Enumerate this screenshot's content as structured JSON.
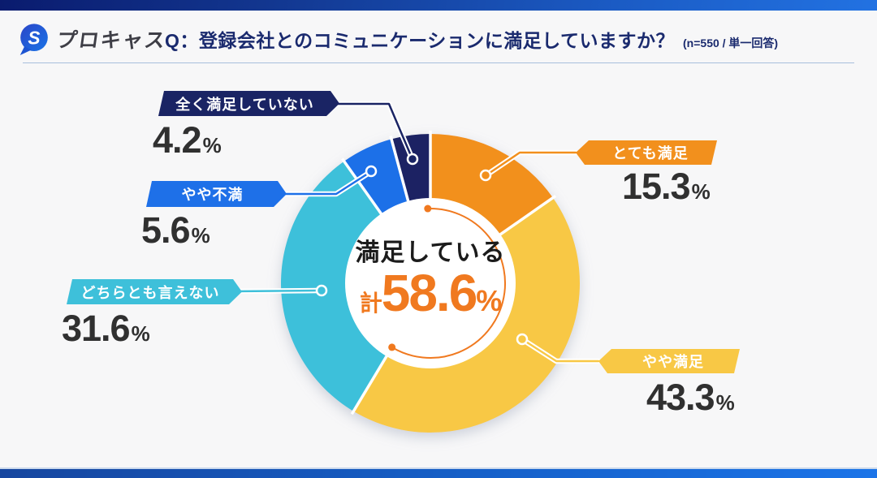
{
  "header": {
    "logo_text": "プロキャス",
    "question_prefix": "Q：",
    "question": "登録会社とのコミュニケーションに満足していますか？",
    "note": "(n=550 / 単一回答)"
  },
  "chart_data": {
    "type": "pie",
    "subtype": "donut",
    "title": "登録会社とのコミュニケーションに満足していますか？",
    "sample_note": "n=550 / 単一回答",
    "unit": "%",
    "start_angle_deg": 0,
    "direction": "clockwise",
    "segments": [
      {
        "label": "とても満足",
        "value": 15.3,
        "color": "#F2901D"
      },
      {
        "label": "やや満足",
        "value": 43.3,
        "color": "#F8C845"
      },
      {
        "label": "どちらとも言えない",
        "value": 31.6,
        "color": "#3EC0DA"
      },
      {
        "label": "やや不満",
        "value": 5.6,
        "color": "#1E70E8"
      },
      {
        "label": "全く満足していない",
        "value": 4.2,
        "color": "#1A2464"
      }
    ],
    "center": {
      "label": "満足している",
      "prefix": "計",
      "value": "58.6",
      "unit": "%",
      "color": "#F0791F"
    }
  },
  "colors": {
    "accent_gradient_start": "#0A1B6E",
    "accent_gradient_end": "#2272E2",
    "question_text": "#1A2A6E",
    "background": "#F7F7F8"
  }
}
